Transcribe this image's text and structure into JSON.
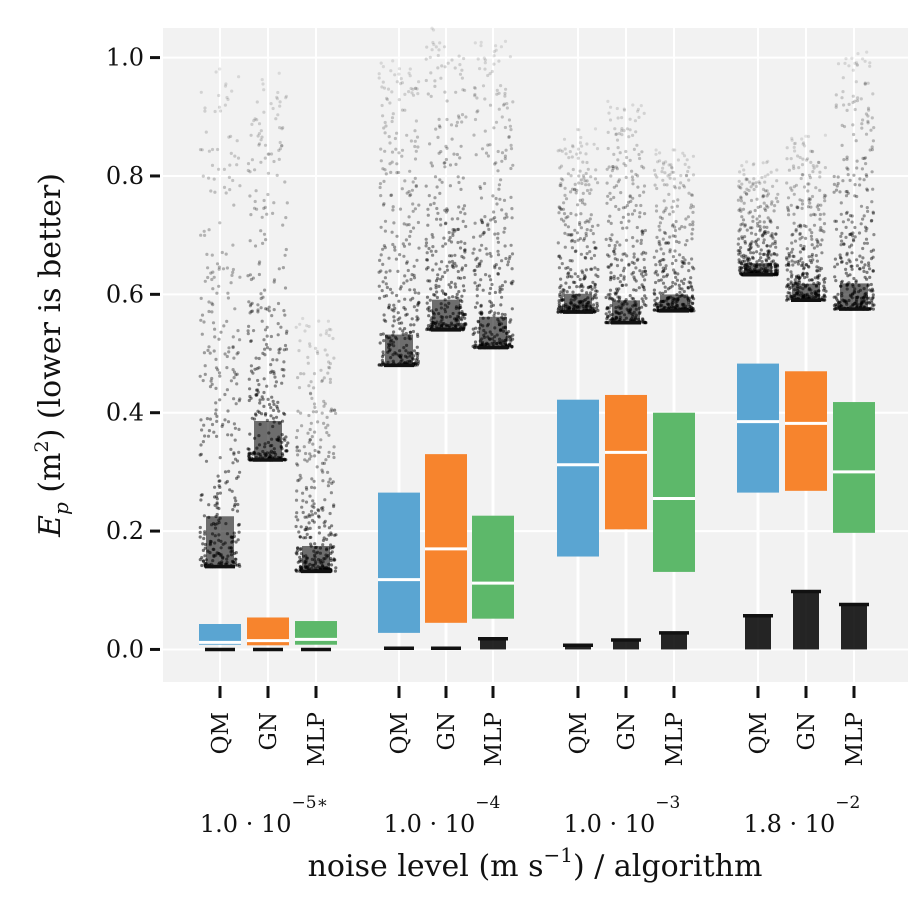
{
  "chart_data": {
    "type": "box",
    "ylabel": "E_p (m²) (lower is better)",
    "xlabel": "noise level (m s⁻¹) / algorithm",
    "ylim": [
      -0.055,
      1.05
    ],
    "yticks": [
      0.0,
      0.2,
      0.4,
      0.6,
      0.8,
      1.0
    ],
    "ytick_labels": [
      "0.0",
      "0.2",
      "0.4",
      "0.6",
      "0.8",
      "1.0"
    ],
    "grid": true,
    "legend": "none",
    "algorithms": [
      "QM",
      "GN",
      "MLP"
    ],
    "colors": {
      "QM": "#5aa5d2",
      "GN": "#f7842d",
      "MLP": "#5db86a"
    },
    "groups": [
      {
        "label_base": "1.0 · 10",
        "label_exp": "−5∗",
        "boxes": [
          {
            "algorithm": "QM",
            "q1": 0.008,
            "median": 0.012,
            "q3": 0.043,
            "whisker_low": 0.0,
            "whisker_high": 0.14,
            "outlier_max": 0.99
          },
          {
            "algorithm": "GN",
            "q1": 0.007,
            "median": 0.015,
            "q3": 0.054,
            "whisker_low": 0.0,
            "whisker_high": 0.32,
            "outlier_max": 0.98
          },
          {
            "algorithm": "MLP",
            "q1": 0.008,
            "median": 0.017,
            "q3": 0.048,
            "whisker_low": 0.0,
            "whisker_high": 0.132,
            "outlier_max": 0.56
          }
        ]
      },
      {
        "label_base": "1.0 · 10",
        "label_exp": "−4",
        "boxes": [
          {
            "algorithm": "QM",
            "q1": 0.028,
            "median": 0.118,
            "q3": 0.265,
            "whisker_low": 0.002,
            "whisker_high": 0.48,
            "outlier_max": 1.0
          },
          {
            "algorithm": "GN",
            "q1": 0.045,
            "median": 0.17,
            "q3": 0.33,
            "whisker_low": 0.002,
            "whisker_high": 0.54,
            "outlier_max": 1.05
          },
          {
            "algorithm": "MLP",
            "q1": 0.052,
            "median": 0.112,
            "q3": 0.226,
            "whisker_low": 0.018,
            "whisker_high": 0.51,
            "outlier_max": 1.03
          }
        ]
      },
      {
        "label_base": "1.0 · 10",
        "label_exp": "−3",
        "boxes": [
          {
            "algorithm": "QM",
            "q1": 0.157,
            "median": 0.312,
            "q3": 0.422,
            "whisker_low": 0.007,
            "whisker_high": 0.57,
            "outlier_max": 0.88
          },
          {
            "algorithm": "GN",
            "q1": 0.203,
            "median": 0.333,
            "q3": 0.43,
            "whisker_low": 0.016,
            "whisker_high": 0.552,
            "outlier_max": 0.93
          },
          {
            "algorithm": "MLP",
            "q1": 0.131,
            "median": 0.255,
            "q3": 0.4,
            "whisker_low": 0.028,
            "whisker_high": 0.572,
            "outlier_max": 0.85
          }
        ]
      },
      {
        "label_base": "1.8 · 10",
        "label_exp": "−2",
        "boxes": [
          {
            "algorithm": "QM",
            "q1": 0.265,
            "median": 0.385,
            "q3": 0.483,
            "whisker_low": 0.057,
            "whisker_high": 0.633,
            "outlier_max": 0.83
          },
          {
            "algorithm": "GN",
            "q1": 0.268,
            "median": 0.382,
            "q3": 0.47,
            "whisker_low": 0.098,
            "whisker_high": 0.59,
            "outlier_max": 0.87
          },
          {
            "algorithm": "MLP",
            "q1": 0.197,
            "median": 0.3,
            "q3": 0.418,
            "whisker_low": 0.076,
            "whisker_high": 0.575,
            "outlier_max": 1.01
          }
        ]
      }
    ]
  }
}
